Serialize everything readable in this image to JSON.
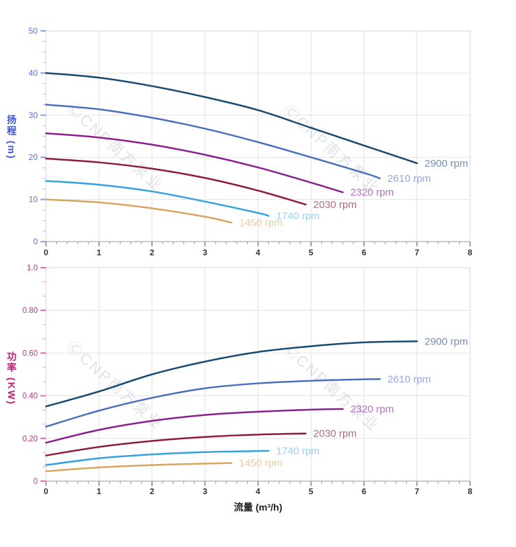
{
  "x_axis_title": "流量 (m³/h)",
  "head_axis_title": "扬程 (m)",
  "power_axis_title": "功率 (KW)",
  "watermark_text": "ⒸCNP南方泵业",
  "chart_data": [
    {
      "type": "line",
      "name": "head",
      "ylabel": "扬程 (m)",
      "xlabel": "",
      "xlim": [
        0,
        8
      ],
      "ylim": [
        0,
        50
      ],
      "x_major_step": 1,
      "x_minor_divisions": 5,
      "y_major_step": 10,
      "y_minor_divisions": 4,
      "x_tick_labels": [
        "0",
        "1",
        "2",
        "3",
        "4",
        "5",
        "6",
        "7",
        "8"
      ],
      "y_tick_labels": [
        "0",
        "10",
        "20",
        "30",
        "40",
        "50"
      ],
      "grid": true,
      "legend_position": "end-of-line",
      "axis_colors": {
        "y_label": "#5a6fe0",
        "y_tick_major": "#8b9ff0",
        "y_tick_minor": "#b3bff4",
        "x_label": "#333333"
      },
      "series": [
        {
          "name": "2900 rpm",
          "color": "#174a72",
          "label_color": "#7590ba",
          "points": [
            [
              0,
              40.0
            ],
            [
              1,
              38.9
            ],
            [
              2,
              36.9
            ],
            [
              3,
              34.3
            ],
            [
              4,
              31.2
            ],
            [
              5,
              27.0
            ],
            [
              6,
              22.8
            ],
            [
              7,
              18.6
            ]
          ]
        },
        {
          "name": "2610 rpm",
          "color": "#4a6fbd",
          "label_color": "#93a9da",
          "points": [
            [
              0,
              32.5
            ],
            [
              1,
              31.4
            ],
            [
              2,
              29.4
            ],
            [
              3,
              26.8
            ],
            [
              4,
              23.6
            ],
            [
              5,
              20.0
            ],
            [
              6,
              16.3
            ],
            [
              6.3,
              15.0
            ]
          ]
        },
        {
          "name": "2320 rpm",
          "color": "#8a1f8f",
          "label_color": "#b273c2",
          "points": [
            [
              0,
              25.7
            ],
            [
              1,
              24.7
            ],
            [
              2,
              23.0
            ],
            [
              3,
              20.6
            ],
            [
              4,
              17.6
            ],
            [
              5,
              14.0
            ],
            [
              5.6,
              11.7
            ]
          ]
        },
        {
          "name": "2030 rpm",
          "color": "#8e1b38",
          "label_color": "#b66a7e",
          "points": [
            [
              0,
              19.7
            ],
            [
              1,
              18.8
            ],
            [
              2,
              17.3
            ],
            [
              3,
              15.1
            ],
            [
              4,
              12.1
            ],
            [
              4.9,
              8.8
            ]
          ]
        },
        {
          "name": "1740 rpm",
          "color": "#33a3dd",
          "label_color": "#9ed0f0",
          "points": [
            [
              0,
              14.4
            ],
            [
              1,
              13.5
            ],
            [
              2,
              11.9
            ],
            [
              3,
              9.5
            ],
            [
              4,
              6.8
            ],
            [
              4.2,
              6.1
            ]
          ]
        },
        {
          "name": "1450 rpm",
          "color": "#d9a45f",
          "label_color": "#e5cba4",
          "points": [
            [
              0,
              10.0
            ],
            [
              1,
              9.3
            ],
            [
              2,
              7.9
            ],
            [
              3,
              5.9
            ],
            [
              3.5,
              4.5
            ]
          ]
        }
      ]
    },
    {
      "type": "line",
      "name": "power",
      "ylabel": "功率 (KW)",
      "xlabel": "流量 (m³/h)",
      "xlim": [
        0,
        8
      ],
      "ylim": [
        0,
        1.0
      ],
      "x_major_step": 1,
      "x_minor_divisions": 5,
      "y_major_step": 0.2,
      "y_minor_divisions": 3,
      "x_tick_labels": [
        "0",
        "1",
        "2",
        "3",
        "4",
        "5",
        "6",
        "7",
        "8"
      ],
      "y_tick_labels": [
        "0",
        "0.20",
        "0.40",
        "0.60",
        "0.80",
        "1.0"
      ],
      "grid": true,
      "legend_position": "end-of-line",
      "axis_colors": {
        "y_label": "#c62f80",
        "y_tick_major": "#e36bb4",
        "y_tick_minor": "#efa3d0",
        "x_label": "#333333"
      },
      "series": [
        {
          "name": "2900 rpm",
          "color": "#174a72",
          "label_color": "#7590ba",
          "points": [
            [
              0,
              0.35
            ],
            [
              1,
              0.42
            ],
            [
              2,
              0.5
            ],
            [
              3,
              0.56
            ],
            [
              4,
              0.605
            ],
            [
              5,
              0.632
            ],
            [
              6,
              0.65
            ],
            [
              7,
              0.655
            ]
          ]
        },
        {
          "name": "2610 rpm",
          "color": "#4a6fbd",
          "label_color": "#93a9da",
          "points": [
            [
              0,
              0.255
            ],
            [
              1,
              0.33
            ],
            [
              2,
              0.39
            ],
            [
              3,
              0.435
            ],
            [
              4,
              0.458
            ],
            [
              5,
              0.47
            ],
            [
              6,
              0.477
            ],
            [
              6.3,
              0.478
            ]
          ]
        },
        {
          "name": "2320 rpm",
          "color": "#8a1f8f",
          "label_color": "#b273c2",
          "points": [
            [
              0,
              0.18
            ],
            [
              1,
              0.24
            ],
            [
              2,
              0.282
            ],
            [
              3,
              0.31
            ],
            [
              4,
              0.325
            ],
            [
              5,
              0.335
            ],
            [
              5.6,
              0.338
            ]
          ]
        },
        {
          "name": "2030 rpm",
          "color": "#8e1b38",
          "label_color": "#b66a7e",
          "points": [
            [
              0,
              0.12
            ],
            [
              1,
              0.16
            ],
            [
              2,
              0.188
            ],
            [
              3,
              0.207
            ],
            [
              4,
              0.218
            ],
            [
              4.9,
              0.223
            ]
          ]
        },
        {
          "name": "1740 rpm",
          "color": "#33a3dd",
          "label_color": "#9ed0f0",
          "points": [
            [
              0,
              0.075
            ],
            [
              1,
              0.107
            ],
            [
              2,
              0.125
            ],
            [
              3,
              0.136
            ],
            [
              4,
              0.141
            ],
            [
              4.2,
              0.142
            ]
          ]
        },
        {
          "name": "1450 rpm",
          "color": "#d9a45f",
          "label_color": "#e5cba4",
          "points": [
            [
              0,
              0.046
            ],
            [
              1,
              0.064
            ],
            [
              2,
              0.075
            ],
            [
              3,
              0.082
            ],
            [
              3.5,
              0.085
            ]
          ]
        }
      ]
    }
  ]
}
